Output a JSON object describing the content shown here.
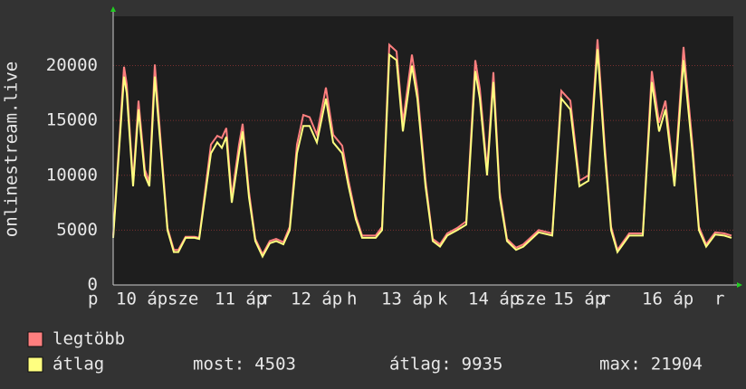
{
  "chart_data": {
    "type": "line",
    "y_label": "onlinestream.live",
    "xlim": [
      0,
      171.25
    ],
    "ylim": [
      0,
      24500
    ],
    "yticks": [
      0,
      5000,
      10000,
      15000,
      20000
    ],
    "xticks": [
      {
        "value": -7,
        "label": "p"
      },
      {
        "value": 0.75,
        "label": "10 áp"
      },
      {
        "value": 15,
        "label": "sze"
      },
      {
        "value": 28,
        "label": "11 áp"
      },
      {
        "value": 41,
        "label": "r"
      },
      {
        "value": 49,
        "label": "12 áp"
      },
      {
        "value": 64.5,
        "label": "h"
      },
      {
        "value": 74,
        "label": "13 áp"
      },
      {
        "value": 89.5,
        "label": "k"
      },
      {
        "value": 98,
        "label": "14 áp"
      },
      {
        "value": 111,
        "label": "sze"
      },
      {
        "value": 121.5,
        "label": "15 áp"
      },
      {
        "value": 134.5,
        "label": "r"
      },
      {
        "value": 146,
        "label": "16 áp"
      },
      {
        "value": 166,
        "label": "r"
      }
    ],
    "grid": true,
    "x": [
      0,
      3,
      3.75,
      5.5,
      7,
      8.75,
      10,
      11.5,
      13.25,
      15,
      16.75,
      18,
      20,
      22.5,
      23.75,
      27,
      28.75,
      30,
      31.25,
      32.75,
      34.75,
      35.75,
      37.5,
      39.25,
      41.25,
      43.25,
      45,
      47,
      48.75,
      50.75,
      52.5,
      54.25,
      56.25,
      58.75,
      60.75,
      63.25,
      65,
      67,
      68.75,
      72.5,
      74.25,
      76.25,
      78.25,
      80,
      82.5,
      84,
      86.25,
      88.25,
      90.25,
      92.25,
      95,
      97.5,
      100,
      101.25,
      103.25,
      105,
      106.75,
      108.75,
      111.25,
      113.25,
      117.5,
      121.25,
      123.75,
      126.25,
      128.75,
      131.25,
      133.75,
      135.75,
      137.5,
      139.25,
      142.5,
      146.25,
      148.75,
      150.75,
      152.5,
      155,
      157.5,
      160,
      161.75,
      163.75,
      166.25,
      168.75,
      170.75
    ],
    "series": [
      {
        "name": "legtöbb",
        "color": "#ff7f7f",
        "values": [
          4500,
          19900,
          18300,
          9400,
          16800,
          10500,
          9400,
          20100,
          12600,
          5200,
          3200,
          3200,
          4400,
          4400,
          4300,
          12800,
          13600,
          13400,
          14300,
          8000,
          12800,
          14700,
          8500,
          4200,
          2800,
          4000,
          4200,
          3900,
          5300,
          12800,
          15500,
          15300,
          13700,
          18000,
          13700,
          12700,
          9500,
          6300,
          4500,
          4500,
          5300,
          21900,
          21300,
          14800,
          21000,
          17800,
          9500,
          4200,
          3700,
          4700,
          5200,
          5800,
          20500,
          17900,
          10500,
          19400,
          8500,
          4200,
          3400,
          3700,
          5000,
          4700,
          17700,
          16800,
          9500,
          10000,
          22400,
          12700,
          5300,
          3200,
          4700,
          4700,
          19500,
          14800,
          16800,
          9500,
          21700,
          12700,
          5300,
          3700,
          4800,
          4700,
          4500
        ]
      },
      {
        "name": "átlag",
        "color": "#ffff80",
        "values": [
          4300,
          19000,
          17500,
          9000,
          16000,
          10000,
          9000,
          19000,
          12000,
          5000,
          3000,
          3000,
          4300,
          4300,
          4200,
          12000,
          13000,
          12500,
          13500,
          7500,
          12000,
          14000,
          8000,
          4000,
          2600,
          3800,
          4000,
          3700,
          5000,
          12000,
          14500,
          14500,
          13000,
          17000,
          13000,
          12000,
          9000,
          6000,
          4300,
          4300,
          5000,
          21000,
          20500,
          14000,
          20000,
          17000,
          9000,
          4000,
          3500,
          4500,
          5000,
          5500,
          19500,
          17000,
          10000,
          18500,
          8000,
          4000,
          3200,
          3500,
          4800,
          4500,
          17000,
          16000,
          9000,
          9500,
          21500,
          12000,
          5000,
          3000,
          4500,
          4500,
          18500,
          14000,
          16000,
          9000,
          20500,
          12000,
          5000,
          3500,
          4600,
          4500,
          4300
        ]
      }
    ],
    "stats": [
      {
        "label": "most:",
        "value": 4503
      },
      {
        "label": "átlag:",
        "value": 9935
      },
      {
        "label": "max:",
        "value": 21904
      }
    ]
  }
}
